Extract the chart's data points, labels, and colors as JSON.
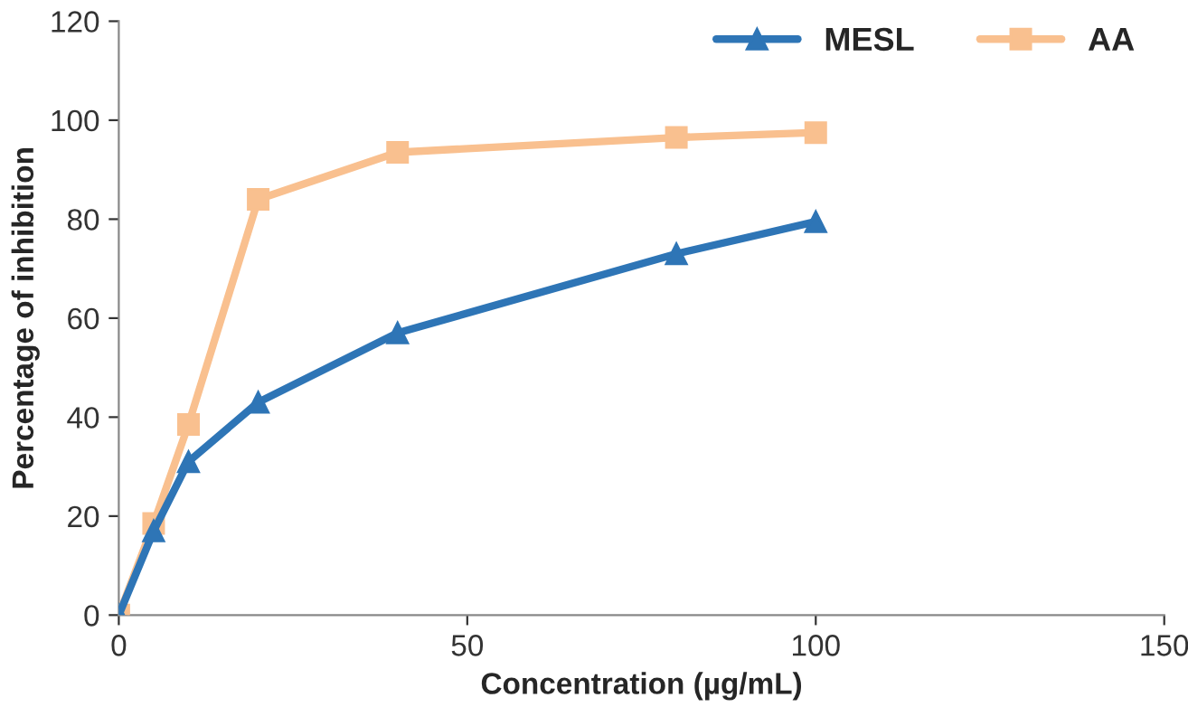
{
  "chart_data": {
    "type": "line",
    "xlabel": "Concentration (µg/mL)",
    "ylabel": "Percentage of inhibition",
    "x": [
      0,
      5,
      10,
      20,
      40,
      80,
      100
    ],
    "series": [
      {
        "name": "MESL",
        "color": "#2e75b6",
        "marker": "triangle",
        "values": [
          0,
          17,
          31,
          43,
          57,
          73,
          79.5
        ]
      },
      {
        "name": "AA",
        "color": "#f9c08f",
        "marker": "square",
        "values": [
          0,
          18.5,
          38.5,
          84,
          93.5,
          96.5,
          97.5
        ]
      }
    ],
    "xlim": [
      0,
      150
    ],
    "xticks": [
      0,
      50,
      100,
      150
    ],
    "ylim": [
      0,
      120
    ],
    "yticks": [
      0,
      20,
      40,
      60,
      80,
      100,
      120
    ],
    "grid": false,
    "legend": "top right"
  }
}
